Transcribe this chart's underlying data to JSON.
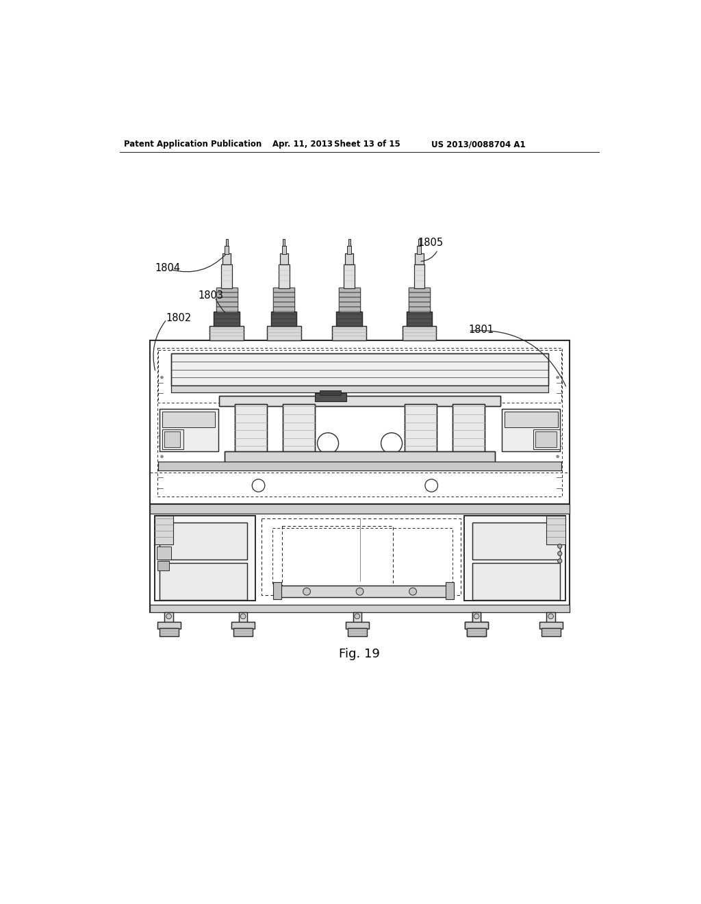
{
  "background_color": "#ffffff",
  "header_text": "Patent Application Publication",
  "header_date": "Apr. 11, 2013",
  "header_sheet": "Sheet 13 of 15",
  "header_patent": "US 2013/0088704 A1",
  "figure_label": "Fig. 19",
  "line_color": "#2a2a2a",
  "light_gray": "#c8c8c8",
  "mid_gray": "#a0a0a0",
  "dark_gray": "#707070"
}
